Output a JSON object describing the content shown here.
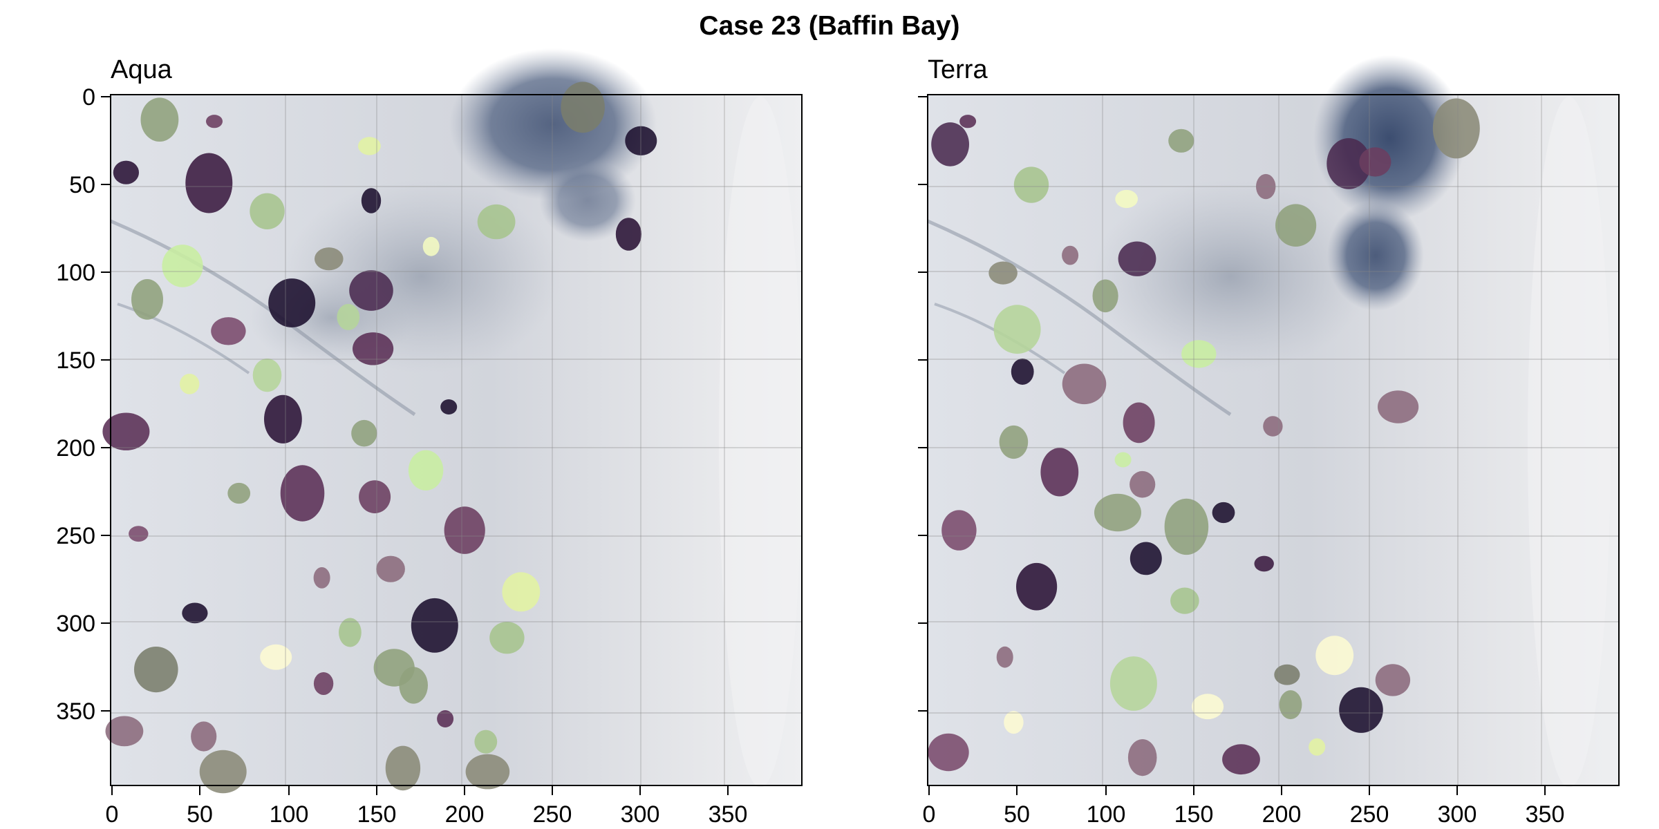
{
  "figure": {
    "title": "Case 23 (Baffin Bay)"
  },
  "panels": [
    {
      "title": "Aqua",
      "x_ticks": [
        "0",
        "50",
        "100",
        "150",
        "200",
        "250",
        "300",
        "350"
      ],
      "y_ticks": [
        "0",
        "50",
        "100",
        "150",
        "200",
        "250",
        "300",
        "350"
      ],
      "y_tick_labels_shown": true,
      "background": "satellite-sea-ice-image",
      "segments": [
        {
          "color": "#6b3d60",
          "x": 58,
          "y": 14
        },
        {
          "color": "#8fa07c",
          "x": 27,
          "y": 13
        },
        {
          "color": "#2a1236",
          "x": 8,
          "y": 43
        },
        {
          "color": "#3a1a40",
          "x": 55,
          "y": 49
        },
        {
          "color": "#a6c48d",
          "x": 88,
          "y": 65
        },
        {
          "color": "#e3f2a2",
          "x": 146,
          "y": 28
        },
        {
          "color": "#7a7d6c",
          "x": 267,
          "y": 6
        },
        {
          "color": "#1b0f2e",
          "x": 300,
          "y": 25
        },
        {
          "color": "#1b0f2e",
          "x": 147,
          "y": 59
        },
        {
          "color": "#c8eea0",
          "x": 40,
          "y": 96
        },
        {
          "color": "#8a8a78",
          "x": 123,
          "y": 92
        },
        {
          "color": "#f4fbc2",
          "x": 181,
          "y": 85
        },
        {
          "color": "#a6c48d",
          "x": 218,
          "y": 71
        },
        {
          "color": "#2a1236",
          "x": 293,
          "y": 78
        },
        {
          "color": "#1b0f2e",
          "x": 102,
          "y": 117
        },
        {
          "color": "#7a4a6c",
          "x": 66,
          "y": 133
        },
        {
          "color": "#b5d59a",
          "x": 134,
          "y": 125
        },
        {
          "color": "#4a2a50",
          "x": 147,
          "y": 110
        },
        {
          "color": "#8fa07c",
          "x": 20,
          "y": 115
        },
        {
          "color": "#e3f2a2",
          "x": 44,
          "y": 163
        },
        {
          "color": "#5a2f55",
          "x": 148,
          "y": 143
        },
        {
          "color": "#b5d59a",
          "x": 88,
          "y": 158
        },
        {
          "color": "#1b0f2e",
          "x": 191,
          "y": 176
        },
        {
          "color": "#2a1236",
          "x": 97,
          "y": 183
        },
        {
          "color": "#8fa07c",
          "x": 143,
          "y": 191
        },
        {
          "color": "#5a2f55",
          "x": 8,
          "y": 190
        },
        {
          "color": "#c8eea0",
          "x": 178,
          "y": 212
        },
        {
          "color": "#8fa07c",
          "x": 72,
          "y": 225
        },
        {
          "color": "#5a2f55",
          "x": 108,
          "y": 225
        },
        {
          "color": "#6b3d60",
          "x": 149,
          "y": 227
        },
        {
          "color": "#7a4a6c",
          "x": 15,
          "y": 248
        },
        {
          "color": "#6b3d60",
          "x": 200,
          "y": 246
        },
        {
          "color": "#8b6a7c",
          "x": 158,
          "y": 268
        },
        {
          "color": "#8b6a7c",
          "x": 119,
          "y": 273
        },
        {
          "color": "#e3f2a2",
          "x": 232,
          "y": 281
        },
        {
          "color": "#1b0f2e",
          "x": 47,
          "y": 293
        },
        {
          "color": "#1b0f2e",
          "x": 183,
          "y": 300
        },
        {
          "color": "#a6c48d",
          "x": 224,
          "y": 307
        },
        {
          "color": "#a6c48d",
          "x": 135,
          "y": 304
        },
        {
          "color": "#7a7d6c",
          "x": 25,
          "y": 325
        },
        {
          "color": "#fdfbd3",
          "x": 93,
          "y": 318
        },
        {
          "color": "#6b3d60",
          "x": 120,
          "y": 333
        },
        {
          "color": "#8fa07c",
          "x": 160,
          "y": 324
        },
        {
          "color": "#8fa07c",
          "x": 171,
          "y": 334
        },
        {
          "color": "#5a2f55",
          "x": 189,
          "y": 353
        },
        {
          "color": "#8b6a7c",
          "x": 7,
          "y": 360
        },
        {
          "color": "#8b6a7c",
          "x": 52,
          "y": 363
        },
        {
          "color": "#8a8a78",
          "x": 63,
          "y": 383
        },
        {
          "color": "#8a8a78",
          "x": 165,
          "y": 381
        },
        {
          "color": "#a6c48d",
          "x": 212,
          "y": 366
        },
        {
          "color": "#8a8a78",
          "x": 213,
          "y": 383
        }
      ]
    },
    {
      "title": "Terra",
      "x_ticks": [
        "0",
        "50",
        "100",
        "150",
        "200",
        "250",
        "300",
        "350"
      ],
      "y_ticks": [
        "0",
        "50",
        "100",
        "150",
        "200",
        "250",
        "300",
        "350"
      ],
      "y_tick_labels_shown": false,
      "background": "satellite-sea-ice-image",
      "segments": [
        {
          "color": "#5a2f55",
          "x": 22,
          "y": 14
        },
        {
          "color": "#4a2a50",
          "x": 12,
          "y": 27
        },
        {
          "color": "#8fa07c",
          "x": 143,
          "y": 25
        },
        {
          "color": "#8a8a78",
          "x": 299,
          "y": 18
        },
        {
          "color": "#a6c48d",
          "x": 58,
          "y": 50
        },
        {
          "color": "#f4fbc2",
          "x": 112,
          "y": 58
        },
        {
          "color": "#4a2a50",
          "x": 238,
          "y": 38
        },
        {
          "color": "#6b3d60",
          "x": 253,
          "y": 37
        },
        {
          "color": "#8b6a7c",
          "x": 191,
          "y": 51
        },
        {
          "color": "#8fa07c",
          "x": 208,
          "y": 73
        },
        {
          "color": "#8a8a78",
          "x": 42,
          "y": 100
        },
        {
          "color": "#8b6a7c",
          "x": 80,
          "y": 90
        },
        {
          "color": "#4a2a50",
          "x": 118,
          "y": 92
        },
        {
          "color": "#8fa07c",
          "x": 100,
          "y": 113
        },
        {
          "color": "#b5d59a",
          "x": 50,
          "y": 132
        },
        {
          "color": "#c8eea0",
          "x": 153,
          "y": 146
        },
        {
          "color": "#1b0f2e",
          "x": 53,
          "y": 156
        },
        {
          "color": "#8b6a7c",
          "x": 88,
          "y": 163
        },
        {
          "color": "#6b3d60",
          "x": 119,
          "y": 185
        },
        {
          "color": "#8b6a7c",
          "x": 195,
          "y": 187
        },
        {
          "color": "#8b6a7c",
          "x": 266,
          "y": 176
        },
        {
          "color": "#8fa07c",
          "x": 48,
          "y": 196
        },
        {
          "color": "#c8eea0",
          "x": 110,
          "y": 206
        },
        {
          "color": "#5a2f55",
          "x": 74,
          "y": 213
        },
        {
          "color": "#8b6a7c",
          "x": 121,
          "y": 220
        },
        {
          "color": "#8fa07c",
          "x": 107,
          "y": 236
        },
        {
          "color": "#7a4a6c",
          "x": 17,
          "y": 246
        },
        {
          "color": "#1b0f2e",
          "x": 167,
          "y": 236
        },
        {
          "color": "#8fa07c",
          "x": 146,
          "y": 244
        },
        {
          "color": "#1b0f2e",
          "x": 123,
          "y": 262
        },
        {
          "color": "#3a1a40",
          "x": 190,
          "y": 265
        },
        {
          "color": "#2a1236",
          "x": 61,
          "y": 278
        },
        {
          "color": "#a6c48d",
          "x": 145,
          "y": 286
        },
        {
          "color": "#8b6a7c",
          "x": 43,
          "y": 318
        },
        {
          "color": "#fdfbd3",
          "x": 230,
          "y": 317
        },
        {
          "color": "#7a7d6c",
          "x": 203,
          "y": 328
        },
        {
          "color": "#b5d59a",
          "x": 116,
          "y": 333
        },
        {
          "color": "#8b6a7c",
          "x": 263,
          "y": 331
        },
        {
          "color": "#8fa07c",
          "x": 205,
          "y": 345
        },
        {
          "color": "#1b0f2e",
          "x": 245,
          "y": 348
        },
        {
          "color": "#fdfbd3",
          "x": 158,
          "y": 346
        },
        {
          "color": "#fdfbd3",
          "x": 48,
          "y": 355
        },
        {
          "color": "#7a4a6c",
          "x": 11,
          "y": 372
        },
        {
          "color": "#8b6a7c",
          "x": 121,
          "y": 375
        },
        {
          "color": "#e3f2a2",
          "x": 220,
          "y": 369
        },
        {
          "color": "#5a2f55",
          "x": 177,
          "y": 376
        }
      ]
    }
  ]
}
